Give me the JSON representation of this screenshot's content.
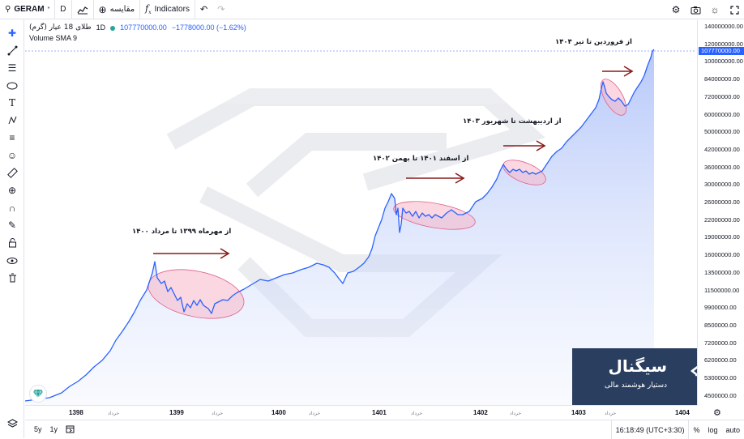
{
  "topbar": {
    "symbol": "GERAM",
    "symbol_suffix": "*",
    "interval": "D",
    "compare_label": "مقایسه",
    "indicators_label": "Indicators",
    "search_icon": "search-icon",
    "bars_icon": "candles-icon",
    "add_icon": "plus-circle-icon",
    "fx_icon": "fx-icon",
    "undo_icon": "undo-icon",
    "redo_icon": "redo-icon",
    "settings_icon": "gear-icon",
    "camera_icon": "camera-icon",
    "theme_icon": "sun-icon",
    "fullscreen_icon": "fullscreen-icon"
  },
  "legend": {
    "title": "طلای 18 عیار (گرم)",
    "interval": "1D",
    "price": "107770000.00",
    "change": "−1778000.00 (−1.62%)",
    "volume_label": "Volume SMA 9"
  },
  "price_axis": {
    "ticks": [
      "140000000.00",
      "120000000.00",
      "100000000.00",
      "84000000.00",
      "72000000.00",
      "60000000.00",
      "50000000.00",
      "42000000.00",
      "36000000.00",
      "30000000.00",
      "26000000.00",
      "22000000.00",
      "19000000.00",
      "16000000.00",
      "13500000.00",
      "11500000.00",
      "9900000.00",
      "8500000.00",
      "7200000.00",
      "6200000.00",
      "5300000.00",
      "4500000.00"
    ],
    "current": "107770000.00"
  },
  "time_axis": {
    "years": [
      "1398",
      "1399",
      "1400",
      "1401",
      "1402",
      "1403",
      "1404"
    ],
    "month_label": "خرداد"
  },
  "bottombar": {
    "range_5y": "5y",
    "range_1y": "1y",
    "calendar_icon": "calendar-range-icon",
    "clock": "16:18:49 (UTC+3:30)",
    "percent": "%",
    "log": "log",
    "auto": "auto"
  },
  "annotations": [
    {
      "text": "از مهرماه ۱۳۹۹ تا مرداد ۱۴۰۰"
    },
    {
      "text": "از اسفند ۱۴۰۱ تا بهمن ۱۴۰۲"
    },
    {
      "text": "از اردیبهشت تا شهریور ۱۴۰۳"
    },
    {
      "text": "از فروردین تا تیر ۱۴۰۴"
    }
  ],
  "brand": {
    "name": "سیگنال",
    "tagline": "دستیار هوشمند مالی"
  },
  "colors": {
    "line": "#2962ff",
    "area_fill": "#c9d6fb",
    "highlight": "#f7b6c8",
    "arrow": "#8b1a1a",
    "brand_bg": "#2a3e60"
  }
}
